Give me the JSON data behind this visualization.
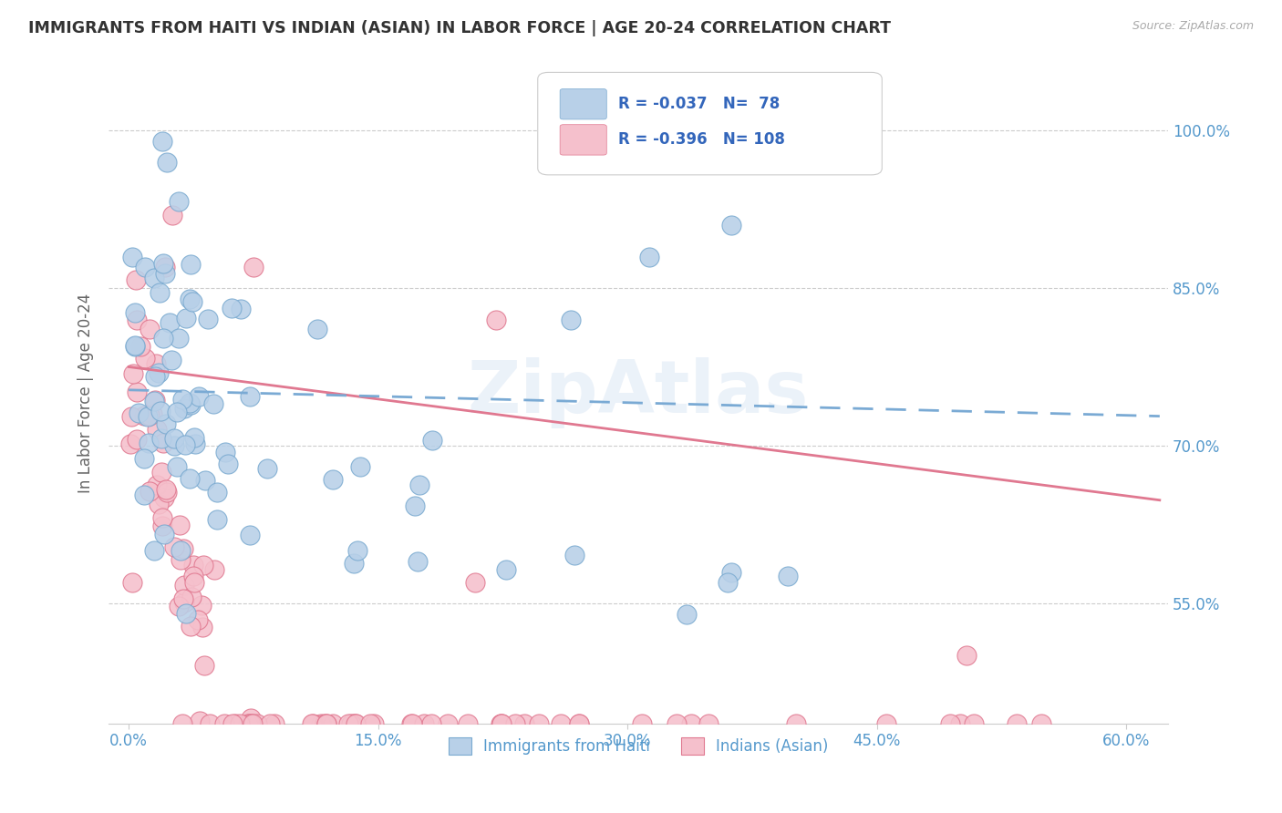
{
  "title": "IMMIGRANTS FROM HAITI VS INDIAN (ASIAN) IN LABOR FORCE | AGE 20-24 CORRELATION CHART",
  "source": "Source: ZipAtlas.com",
  "ylabel": "In Labor Force | Age 20-24",
  "ytick_vals": [
    0.55,
    0.7,
    0.85,
    1.0
  ],
  "ytick_labels": [
    "55.0%",
    "70.0%",
    "85.0%",
    "100.0%"
  ],
  "xtick_vals": [
    0.0,
    0.15,
    0.3,
    0.45,
    0.6
  ],
  "xtick_labels": [
    "0.0%",
    "15.0%",
    "30.0%",
    "45.0%",
    "60.0%"
  ],
  "xlim": [
    -0.012,
    0.625
  ],
  "ylim": [
    0.435,
    1.065
  ],
  "legend_label1": "Immigrants from Haiti",
  "legend_label2": "Indians (Asian)",
  "legend_text1": "R = -0.037   N=  78",
  "legend_text2": "R = -0.396   N= 108",
  "color_blue_fill": "#b8d0e8",
  "color_blue_edge": "#7aaad0",
  "color_pink_fill": "#f5c0cc",
  "color_pink_edge": "#e07890",
  "color_blue_line": "#7aaad4",
  "color_pink_line": "#e07890",
  "color_title": "#333333",
  "color_axis_ticks": "#5599cc",
  "color_source": "#aaaaaa",
  "color_legend_text": "#3366bb",
  "color_grid": "#cccccc",
  "watermark": "ZipAtlas",
  "haiti_trend_x0": 0.0,
  "haiti_trend_x1": 0.62,
  "haiti_trend_y0": 0.753,
  "haiti_trend_y1": 0.728,
  "indian_trend_x0": 0.0,
  "indian_trend_x1": 0.62,
  "indian_trend_y0": 0.775,
  "indian_trend_y1": 0.648
}
